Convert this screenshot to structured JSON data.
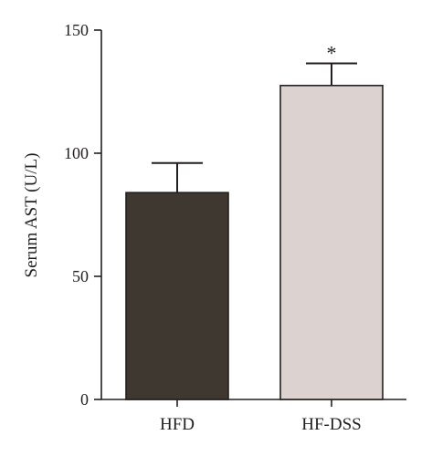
{
  "chart_data": {
    "type": "bar",
    "categories": [
      "HFD",
      "HF-DSS"
    ],
    "values": [
      84,
      127.5
    ],
    "errors": [
      12,
      9
    ],
    "bar_colors": [
      "#3e3831",
      "#dcd3d0"
    ],
    "annotations": [
      "",
      "*"
    ],
    "title": "",
    "xlabel": "",
    "ylabel": "Serum AST (U/L)",
    "ylim": [
      0,
      150
    ],
    "yticks": [
      0,
      50,
      100,
      150
    ],
    "grid": false
  }
}
